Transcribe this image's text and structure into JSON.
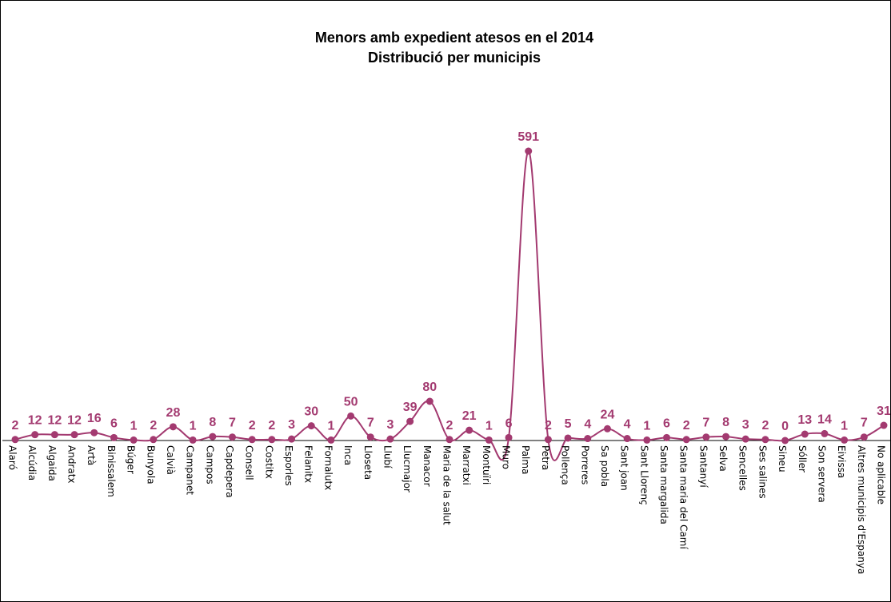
{
  "chart_data": {
    "type": "line",
    "title": "Menors amb expedient atesos en el 2014",
    "subtitle": "Distribució per municipis",
    "xlabel": "",
    "ylabel": "",
    "ylim": [
      0,
      640
    ],
    "grid": false,
    "legend": "none",
    "colors": {
      "series": "#A33A70",
      "axis": "#000000"
    },
    "categories": [
      "Alaró",
      "Alcúdia",
      "Algaida",
      "Andratx",
      "Artà",
      "Binissalem",
      "Búger",
      "Bunyola",
      "Calvià",
      "Campanet",
      "Campos",
      "Capdepera",
      "Consell",
      "Costitx",
      "Esporles",
      "Felanitx",
      "Fornalutx",
      "Inca",
      "Lloseta",
      "Llubí",
      "Llucmajor",
      "Manacor",
      "Maria de la salut",
      "Marratxi",
      "Montuïri",
      "Muro",
      "Palma",
      "Petra",
      "Pollença",
      "Porreres",
      "Sa pobla",
      "Sant joan",
      "Sant Llorenç",
      "Santa margalida",
      "Santa maria del Camí",
      "Santanyí",
      "Selva",
      "Sencelles",
      "Ses salines",
      "Sineu",
      "Sóller",
      "Son servera",
      "Eivissa",
      "Altres municipis d'Espanya",
      "No aplicable"
    ],
    "series": [
      {
        "values": [
          2,
          12,
          12,
          12,
          16,
          6,
          1,
          2,
          28,
          1,
          8,
          7,
          2,
          2,
          3,
          30,
          1,
          50,
          7,
          3,
          39,
          80,
          2,
          21,
          1,
          6,
          591,
          2,
          5,
          4,
          24,
          4,
          1,
          6,
          2,
          7,
          8,
          3,
          2,
          0,
          13,
          14,
          1,
          7,
          31
        ]
      }
    ]
  }
}
